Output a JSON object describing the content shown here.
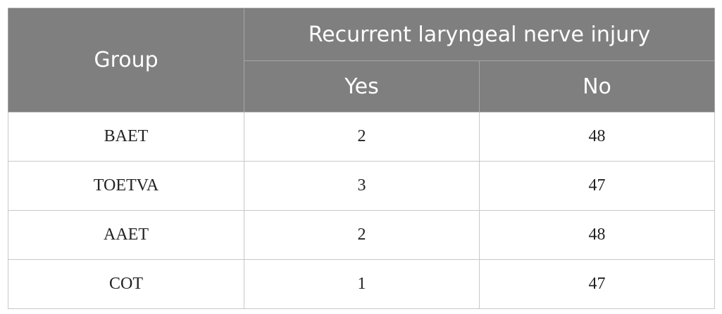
{
  "header": {
    "group": "Group",
    "span": "Recurrent laryngeal nerve injury",
    "sub": [
      "Yes",
      "No"
    ]
  },
  "table": {
    "rows": [
      [
        "BAET",
        2,
        48
      ],
      [
        "TOETVA",
        3,
        47
      ],
      [
        "AAET",
        2,
        48
      ],
      [
        "COT",
        1,
        47
      ]
    ]
  }
}
